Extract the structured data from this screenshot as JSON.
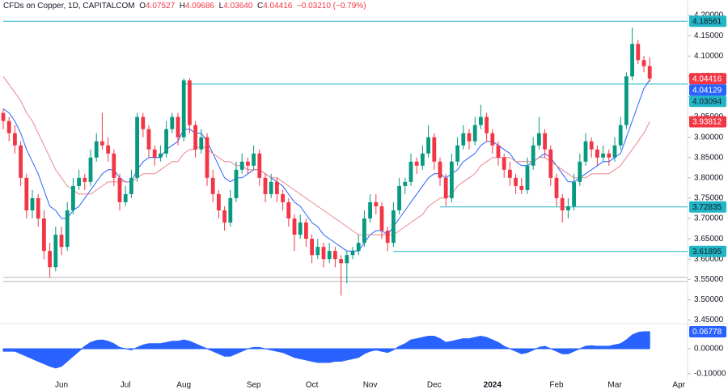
{
  "header": {
    "symbol": "CFDs on Copper, 1D, CAPITALCOM",
    "ohlc": [
      {
        "key": "O",
        "label": "4.07527"
      },
      {
        "key": "H",
        "label": "4.09686"
      },
      {
        "key": "L",
        "label": "4.03640"
      },
      {
        "key": "C",
        "label": "4.04416"
      }
    ],
    "change": "−0.03210 (−0.79%)"
  },
  "chart_data": {
    "type": "candlestick",
    "up_color": "#089981",
    "down_color": "#f23645",
    "categories": [
      null,
      null,
      null,
      null,
      null,
      null,
      null,
      null,
      null,
      null,
      "Jun",
      null,
      null,
      null,
      null,
      null,
      null,
      null,
      null,
      null,
      null,
      "Jul",
      null,
      null,
      null,
      null,
      null,
      null,
      null,
      null,
      null,
      "Aug",
      null,
      null,
      null,
      null,
      null,
      null,
      null,
      null,
      null,
      null,
      null,
      "Sep",
      null,
      null,
      null,
      null,
      null,
      null,
      null,
      null,
      null,
      "Oct",
      null,
      null,
      null,
      null,
      null,
      null,
      null,
      null,
      null,
      "Nov",
      null,
      null,
      null,
      null,
      null,
      null,
      null,
      null,
      null,
      null,
      "Dec",
      null,
      null,
      null,
      null,
      null,
      null,
      null,
      null,
      null,
      "2024",
      null,
      null,
      null,
      null,
      null,
      null,
      null,
      null,
      null,
      null,
      "Feb",
      null,
      null,
      null,
      null,
      null,
      null,
      null,
      null,
      null,
      "Mar",
      null,
      null,
      null,
      null,
      null,
      null,
      null,
      null,
      null,
      null,
      "Apr"
    ],
    "candles": [
      [
        3.96,
        3.97,
        3.92,
        3.94
      ],
      [
        3.94,
        3.95,
        3.89,
        3.91
      ],
      [
        3.91,
        3.93,
        3.86,
        3.88
      ],
      [
        3.88,
        3.89,
        3.78,
        3.8
      ],
      [
        3.8,
        3.81,
        3.7,
        3.72
      ],
      [
        3.72,
        3.77,
        3.7,
        3.75
      ],
      [
        3.75,
        3.76,
        3.68,
        3.7
      ],
      [
        3.7,
        3.72,
        3.6,
        3.62
      ],
      [
        3.62,
        3.64,
        3.555,
        3.58
      ],
      [
        3.58,
        3.68,
        3.57,
        3.66
      ],
      [
        3.66,
        3.68,
        3.61,
        3.63
      ],
      [
        3.63,
        3.74,
        3.62,
        3.72
      ],
      [
        3.72,
        3.8,
        3.71,
        3.78
      ],
      [
        3.78,
        3.82,
        3.77,
        3.8
      ],
      [
        3.8,
        3.81,
        3.77,
        3.79
      ],
      [
        3.79,
        3.87,
        3.78,
        3.85
      ],
      [
        3.85,
        3.91,
        3.84,
        3.89
      ],
      [
        3.89,
        3.96,
        3.87,
        3.88
      ],
      [
        3.88,
        3.9,
        3.84,
        3.86
      ],
      [
        3.86,
        3.87,
        3.78,
        3.8
      ],
      [
        3.8,
        3.81,
        3.72,
        3.74
      ],
      [
        3.74,
        3.78,
        3.73,
        3.76
      ],
      [
        3.76,
        3.82,
        3.75,
        3.8
      ],
      [
        3.8,
        3.96,
        3.79,
        3.95
      ],
      [
        3.95,
        3.96,
        3.9,
        3.92
      ],
      [
        3.92,
        3.93,
        3.85,
        3.87
      ],
      [
        3.87,
        3.88,
        3.83,
        3.85
      ],
      [
        3.85,
        3.88,
        3.84,
        3.86
      ],
      [
        3.86,
        3.94,
        3.85,
        3.92
      ],
      [
        3.92,
        3.96,
        3.91,
        3.95
      ],
      [
        3.95,
        3.96,
        3.88,
        3.9
      ],
      [
        3.9,
        4.045,
        3.89,
        4.04
      ],
      [
        4.04,
        4.045,
        3.91,
        3.93
      ],
      [
        3.93,
        3.94,
        3.85,
        3.87
      ],
      [
        3.87,
        3.92,
        3.86,
        3.9
      ],
      [
        3.9,
        3.91,
        3.78,
        3.8
      ],
      [
        3.8,
        3.82,
        3.74,
        3.76
      ],
      [
        3.76,
        3.77,
        3.7,
        3.72
      ],
      [
        3.72,
        3.73,
        3.67,
        3.69
      ],
      [
        3.69,
        3.77,
        3.68,
        3.75
      ],
      [
        3.75,
        3.84,
        3.74,
        3.82
      ],
      [
        3.82,
        3.86,
        3.81,
        3.84
      ],
      [
        3.84,
        3.85,
        3.81,
        3.83
      ],
      [
        3.83,
        3.88,
        3.82,
        3.86
      ],
      [
        3.86,
        3.87,
        3.78,
        3.8
      ],
      [
        3.8,
        3.81,
        3.74,
        3.76
      ],
      [
        3.76,
        3.81,
        3.75,
        3.79
      ],
      [
        3.79,
        3.8,
        3.74,
        3.76
      ],
      [
        3.76,
        3.77,
        3.72,
        3.74
      ],
      [
        3.74,
        3.75,
        3.68,
        3.7
      ],
      [
        3.7,
        3.71,
        3.62,
        3.66
      ],
      [
        3.66,
        3.71,
        3.65,
        3.69
      ],
      [
        3.69,
        3.7,
        3.63,
        3.65
      ],
      [
        3.65,
        3.66,
        3.59,
        3.61
      ],
      [
        3.61,
        3.65,
        3.6,
        3.63
      ],
      [
        3.63,
        3.64,
        3.58,
        3.6
      ],
      [
        3.6,
        3.64,
        3.59,
        3.62
      ],
      [
        3.62,
        3.63,
        3.58,
        3.6
      ],
      [
        3.6,
        3.61,
        3.51,
        3.59
      ],
      [
        3.59,
        3.62,
        3.54,
        3.61
      ],
      [
        3.61,
        3.63,
        3.6,
        3.62
      ],
      [
        3.62,
        3.66,
        3.61,
        3.64
      ],
      [
        3.64,
        3.72,
        3.63,
        3.7
      ],
      [
        3.7,
        3.76,
        3.69,
        3.74
      ],
      [
        3.74,
        3.76,
        3.71,
        3.73
      ],
      [
        3.73,
        3.74,
        3.65,
        3.67
      ],
      [
        3.67,
        3.68,
        3.62,
        3.64
      ],
      [
        3.64,
        3.74,
        3.63,
        3.72
      ],
      [
        3.72,
        3.8,
        3.71,
        3.78
      ],
      [
        3.78,
        3.8,
        3.76,
        3.79
      ],
      [
        3.79,
        3.86,
        3.78,
        3.84
      ],
      [
        3.84,
        3.85,
        3.81,
        3.83
      ],
      [
        3.83,
        3.88,
        3.82,
        3.86
      ],
      [
        3.86,
        3.93,
        3.85,
        3.9
      ],
      [
        3.9,
        3.91,
        3.82,
        3.84
      ],
      [
        3.84,
        3.85,
        3.78,
        3.8
      ],
      [
        3.8,
        3.81,
        3.73,
        3.75
      ],
      [
        3.75,
        3.86,
        3.74,
        3.84
      ],
      [
        3.84,
        3.9,
        3.83,
        3.88
      ],
      [
        3.88,
        3.93,
        3.87,
        3.91
      ],
      [
        3.91,
        3.92,
        3.87,
        3.89
      ],
      [
        3.89,
        3.95,
        3.88,
        3.93
      ],
      [
        3.93,
        3.98,
        3.92,
        3.95
      ],
      [
        3.95,
        3.96,
        3.89,
        3.91
      ],
      [
        3.91,
        3.92,
        3.86,
        3.88
      ],
      [
        3.88,
        3.89,
        3.83,
        3.85
      ],
      [
        3.85,
        3.86,
        3.8,
        3.82
      ],
      [
        3.82,
        3.84,
        3.78,
        3.8
      ],
      [
        3.8,
        3.81,
        3.76,
        3.78
      ],
      [
        3.78,
        3.8,
        3.76,
        3.77
      ],
      [
        3.77,
        3.85,
        3.76,
        3.83
      ],
      [
        3.83,
        3.9,
        3.82,
        3.88
      ],
      [
        3.88,
        3.95,
        3.87,
        3.91
      ],
      [
        3.91,
        3.92,
        3.85,
        3.87
      ],
      [
        3.87,
        3.88,
        3.78,
        3.8
      ],
      [
        3.8,
        3.81,
        3.73,
        3.75
      ],
      [
        3.75,
        3.76,
        3.69,
        3.72
      ],
      [
        3.72,
        3.75,
        3.7,
        3.73
      ],
      [
        3.73,
        3.81,
        3.72,
        3.79
      ],
      [
        3.79,
        3.86,
        3.78,
        3.84
      ],
      [
        3.84,
        3.91,
        3.83,
        3.89
      ],
      [
        3.89,
        3.9,
        3.85,
        3.87
      ],
      [
        3.87,
        3.88,
        3.83,
        3.85
      ],
      [
        3.85,
        3.88,
        3.84,
        3.86
      ],
      [
        3.86,
        3.87,
        3.83,
        3.85
      ],
      [
        3.85,
        3.9,
        3.84,
        3.88
      ],
      [
        3.88,
        3.95,
        3.87,
        3.93
      ],
      [
        3.93,
        4.06,
        3.92,
        4.05
      ],
      [
        4.05,
        4.17,
        4.04,
        4.13
      ],
      [
        4.13,
        4.14,
        4.08,
        4.09
      ],
      [
        4.09,
        4.1,
        4.06,
        4.075
      ],
      [
        4.07527,
        4.09686,
        4.0364,
        4.04416
      ],
      null,
      null,
      null,
      null,
      null
    ],
    "overlays": [
      {
        "color": "#2962ff",
        "badge_color": "#2962ff",
        "values": [
          3.97,
          3.96,
          3.94,
          3.91,
          3.87,
          3.84,
          3.81,
          3.77,
          3.73,
          3.72,
          3.7,
          3.7,
          3.72,
          3.73,
          3.75,
          3.77,
          3.79,
          3.81,
          3.82,
          3.82,
          3.8,
          3.79,
          3.79,
          3.82,
          3.84,
          3.85,
          3.85,
          3.85,
          3.87,
          3.88,
          3.89,
          3.92,
          3.92,
          3.91,
          3.91,
          3.89,
          3.86,
          3.83,
          3.8,
          3.79,
          3.8,
          3.8,
          3.81,
          3.82,
          3.82,
          3.81,
          3.8,
          3.79,
          3.78,
          3.76,
          3.74,
          3.73,
          3.71,
          3.69,
          3.68,
          3.66,
          3.65,
          3.64,
          3.63,
          3.62,
          3.62,
          3.62,
          3.64,
          3.66,
          3.67,
          3.67,
          3.66,
          3.68,
          3.7,
          3.72,
          3.74,
          3.76,
          3.78,
          3.8,
          3.81,
          3.81,
          3.8,
          3.81,
          3.82,
          3.84,
          3.85,
          3.86,
          3.88,
          3.89,
          3.89,
          3.88,
          3.87,
          3.86,
          3.84,
          3.83,
          3.83,
          3.84,
          3.85,
          3.86,
          3.85,
          3.83,
          3.81,
          3.79,
          3.79,
          3.8,
          3.81,
          3.82,
          3.83,
          3.84,
          3.84,
          3.85,
          3.86,
          3.9,
          3.94,
          3.98,
          4.02,
          4.04129,
          null,
          null,
          null,
          null,
          null
        ]
      },
      {
        "color": "#e8868d",
        "badge_color": "#f23645",
        "values": [
          4.05,
          4.03,
          4.01,
          3.99,
          3.96,
          3.94,
          3.91,
          3.88,
          3.85,
          3.82,
          3.8,
          3.78,
          3.77,
          3.76,
          3.76,
          3.76,
          3.77,
          3.78,
          3.79,
          3.79,
          3.79,
          3.79,
          3.79,
          3.8,
          3.81,
          3.81,
          3.81,
          3.82,
          3.83,
          3.84,
          3.84,
          3.86,
          3.87,
          3.87,
          3.88,
          3.87,
          3.86,
          3.85,
          3.84,
          3.84,
          3.83,
          3.83,
          3.82,
          3.82,
          3.82,
          3.81,
          3.8,
          3.8,
          3.79,
          3.78,
          3.77,
          3.76,
          3.75,
          3.74,
          3.73,
          3.72,
          3.71,
          3.7,
          3.69,
          3.68,
          3.67,
          3.66,
          3.66,
          3.66,
          3.66,
          3.66,
          3.66,
          3.66,
          3.67,
          3.68,
          3.69,
          3.7,
          3.71,
          3.73,
          3.74,
          3.75,
          3.75,
          3.76,
          3.78,
          3.79,
          3.8,
          3.81,
          3.83,
          3.84,
          3.85,
          3.85,
          3.85,
          3.85,
          3.84,
          3.84,
          3.84,
          3.84,
          3.85,
          3.85,
          3.84,
          3.83,
          3.82,
          3.81,
          3.8,
          3.8,
          3.8,
          3.81,
          3.81,
          3.81,
          3.81,
          3.82,
          3.83,
          3.85,
          3.87,
          3.89,
          3.91,
          3.93812,
          null,
          null,
          null,
          null,
          null
        ]
      }
    ],
    "levels": [
      {
        "value": 4.18561,
        "start": 0,
        "color": "#22b5c6",
        "badge": true
      },
      {
        "value": 4.03094,
        "start": 31,
        "color": "#22b5c6",
        "badge": true
      },
      {
        "value": 3.72835,
        "start": 75,
        "color": "#22b5c6",
        "badge": true
      },
      {
        "value": 3.61895,
        "start": 67,
        "color": "#22b5c6",
        "badge": true
      },
      {
        "value": 3.555,
        "start": 0,
        "color": "#b2b5be",
        "badge": false
      },
      {
        "value": 3.545,
        "start": 0,
        "color": "#b2b5be",
        "badge": false
      }
    ],
    "ylim": [
      3.445,
      4.238
    ],
    "yticks": [
      {
        "value": 3.45,
        "label": "3.45000"
      },
      {
        "value": 3.5,
        "label": "3.50000"
      },
      {
        "value": 3.55,
        "label": "3.55000"
      },
      {
        "value": 3.6,
        "label": "3.60000"
      },
      {
        "value": 3.65,
        "label": "3.65000"
      },
      {
        "value": 3.7,
        "label": "3.70000"
      },
      {
        "value": 3.75,
        "label": "3.75000"
      },
      {
        "value": 3.8,
        "label": "3.80000"
      },
      {
        "value": 3.85,
        "label": "3.85000"
      },
      {
        "value": 3.9,
        "label": "3.90000"
      },
      {
        "value": 3.95,
        "label": "3.95000"
      },
      {
        "value": 4.0,
        "label": "4.00000"
      },
      {
        "value": 4.05,
        "label": "4.05000"
      },
      {
        "value": 4.1,
        "label": "4.10000"
      },
      {
        "value": 4.15,
        "label": "4.15000"
      },
      {
        "value": 4.2,
        "label": "4.20000"
      }
    ],
    "indicator": {
      "type": "area",
      "color": "#2962ff",
      "values": [
        -0.01,
        -0.01,
        -0.01,
        -0.02,
        -0.03,
        -0.04,
        -0.05,
        -0.06,
        -0.07,
        -0.077,
        -0.07,
        -0.05,
        -0.03,
        -0.01,
        0.01,
        0.025,
        0.033,
        0.035,
        0.03,
        0.02,
        0.005,
        0,
        -0.005,
        0.005,
        0.015,
        0.02,
        0.02,
        0.02,
        0.025,
        0.03,
        0.03,
        0.035,
        0.03,
        0.02,
        0.01,
        0,
        -0.01,
        -0.02,
        -0.03,
        -0.03,
        -0.02,
        -0.01,
        0,
        0.005,
        0.005,
        0,
        -0.005,
        -0.01,
        -0.015,
        -0.025,
        -0.035,
        -0.04,
        -0.045,
        -0.05,
        -0.055,
        -0.055,
        -0.055,
        -0.05,
        -0.05,
        -0.045,
        -0.04,
        -0.035,
        -0.02,
        -0.01,
        -0.005,
        -0.01,
        -0.015,
        -0.005,
        0.01,
        0.02,
        0.035,
        0.04,
        0.045,
        0.05,
        0.05,
        0.04,
        0.025,
        0.03,
        0.035,
        0.04,
        0.04,
        0.045,
        0.05,
        0.045,
        0.035,
        0.025,
        0.01,
        0,
        -0.01,
        -0.02,
        -0.015,
        -0.005,
        0.005,
        0.01,
        0,
        -0.01,
        -0.02,
        -0.02,
        -0.01,
        0,
        0.01,
        0.012,
        0.01,
        0.01,
        0.01,
        0.015,
        0.02,
        0.035,
        0.055,
        0.065,
        0.068,
        0.06778,
        null,
        null,
        null,
        null,
        null
      ],
      "ylim": [
        -0.126,
        0.0935
      ],
      "yticks": [
        {
          "value": 0,
          "label": "0.00000"
        },
        {
          "value": -0.1,
          "label": "-0.10000"
        }
      ]
    }
  }
}
